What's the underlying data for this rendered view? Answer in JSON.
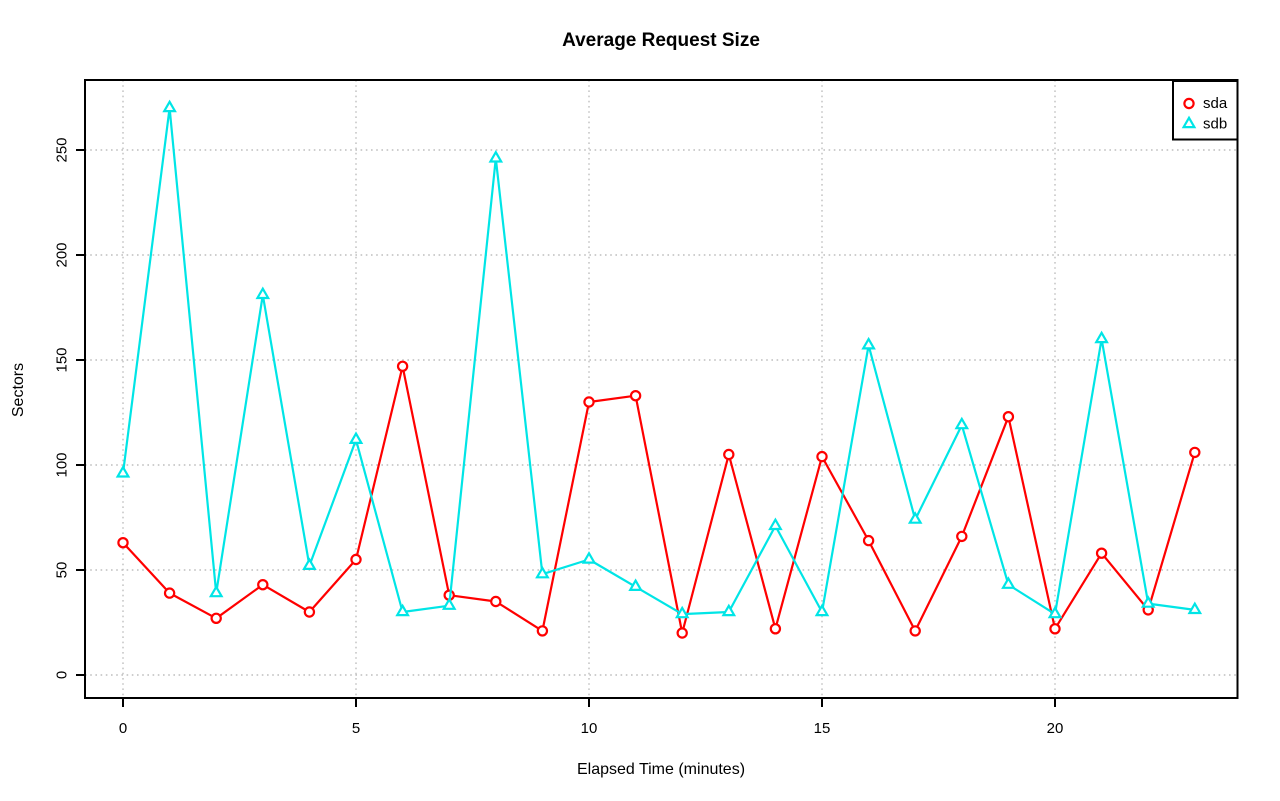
{
  "chart_data": {
    "type": "line",
    "title": "Average Request Size",
    "xlabel": "Elapsed Time (minutes)",
    "ylabel": "Sectors",
    "x": [
      0,
      1,
      2,
      3,
      4,
      5,
      6,
      7,
      8,
      9,
      10,
      11,
      12,
      13,
      14,
      15,
      16,
      17,
      18,
      19,
      20,
      21,
      22,
      23
    ],
    "series": [
      {
        "name": "sda",
        "marker": "circle",
        "color": "#ff0000",
        "values": [
          63,
          39,
          27,
          43,
          30,
          55,
          147,
          38,
          35,
          21,
          130,
          133,
          20,
          105,
          22,
          104,
          64,
          21,
          66,
          123,
          22,
          58,
          31,
          106
        ]
      },
      {
        "name": "sdb",
        "marker": "triangle",
        "color": "#00e5e6",
        "values": [
          96,
          270,
          39,
          181,
          52,
          112,
          30,
          33,
          246,
          48,
          55,
          42,
          29,
          30,
          71,
          30,
          157,
          74,
          119,
          43,
          29,
          160,
          34,
          31
        ]
      }
    ],
    "x_ticks": [
      0,
      5,
      10,
      15,
      20
    ],
    "y_ticks": [
      0,
      50,
      100,
      150,
      200,
      250
    ],
    "xlim": [
      0,
      23
    ],
    "ylim": [
      0,
      270
    ],
    "grid": "dotted",
    "grid_color": "#bebebe",
    "axis_color": "#000000",
    "legend_position": "top-right"
  }
}
